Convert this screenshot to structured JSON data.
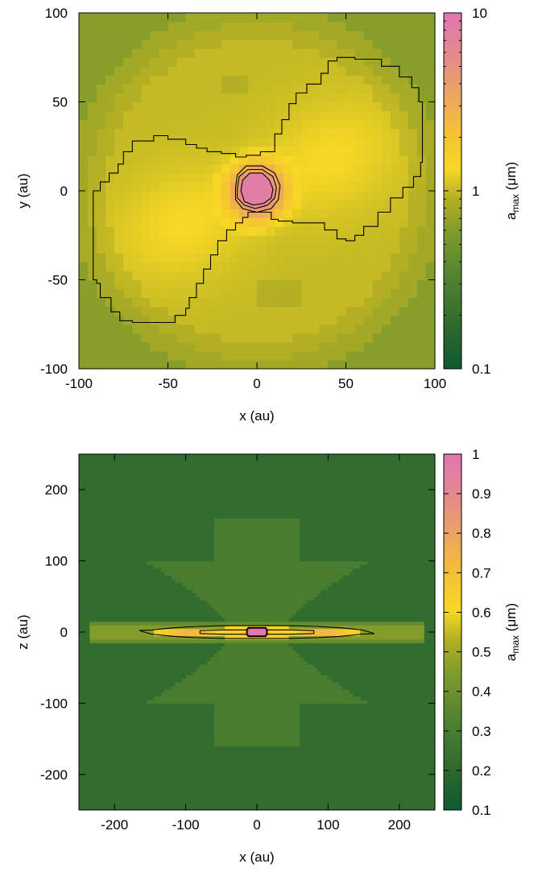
{
  "chart_data": [
    {
      "type": "heatmap",
      "panel": "top",
      "xlabel": "x (au)",
      "ylabel": "y (au)",
      "colorbar_label": "a",
      "colorbar_label_sub": "max",
      "colorbar_label_unit": " (μm)",
      "xlim": [
        -100,
        100
      ],
      "ylim": [
        -100,
        100
      ],
      "x_ticks": [
        -100,
        -50,
        0,
        50,
        100
      ],
      "y_ticks": [
        -100,
        -50,
        0,
        50,
        100
      ],
      "colorbar_scale": "log",
      "colorbar_range": [
        0.1,
        10
      ],
      "colorbar_ticks": [
        0.1,
        1,
        10
      ],
      "background_value": 1.0,
      "lobe_value": 1.3,
      "core_value": 8,
      "contour_levels": [
        1.2,
        3,
        6
      ]
    },
    {
      "type": "heatmap",
      "panel": "bottom",
      "xlabel": "x (au)",
      "ylabel": "z (au)",
      "colorbar_label": "a",
      "colorbar_label_sub": "max",
      "colorbar_label_unit": " (μm)",
      "xlim": [
        -250,
        250
      ],
      "ylim": [
        -250,
        250
      ],
      "x_ticks": [
        -200,
        -100,
        0,
        100,
        200
      ],
      "y_ticks": [
        -200,
        -100,
        0,
        100,
        200
      ],
      "colorbar_scale": "linear",
      "colorbar_range": [
        0.1,
        1
      ],
      "colorbar_ticks": [
        0.1,
        0.2,
        0.3,
        0.4,
        0.5,
        0.6,
        0.7,
        0.8,
        0.9,
        1
      ],
      "background_value": 0.22,
      "hourglass_value": 0.3,
      "midplane_band_value": 0.45,
      "disk_value": 0.62,
      "core_value": 0.98,
      "contour_levels": [
        0.55,
        0.8,
        0.95
      ]
    }
  ],
  "colormap": {
    "stops": [
      {
        "t": 0.0,
        "color": "#0f5a32"
      },
      {
        "t": 0.12,
        "color": "#2f6a2e"
      },
      {
        "t": 0.25,
        "color": "#4f8230"
      },
      {
        "t": 0.38,
        "color": "#7e9a2c"
      },
      {
        "t": 0.48,
        "color": "#b4b024"
      },
      {
        "t": 0.56,
        "color": "#f7d824"
      },
      {
        "t": 0.66,
        "color": "#f5c234"
      },
      {
        "t": 0.76,
        "color": "#eca85c"
      },
      {
        "t": 0.88,
        "color": "#e48a8c"
      },
      {
        "t": 1.0,
        "color": "#df76b3"
      }
    ]
  }
}
